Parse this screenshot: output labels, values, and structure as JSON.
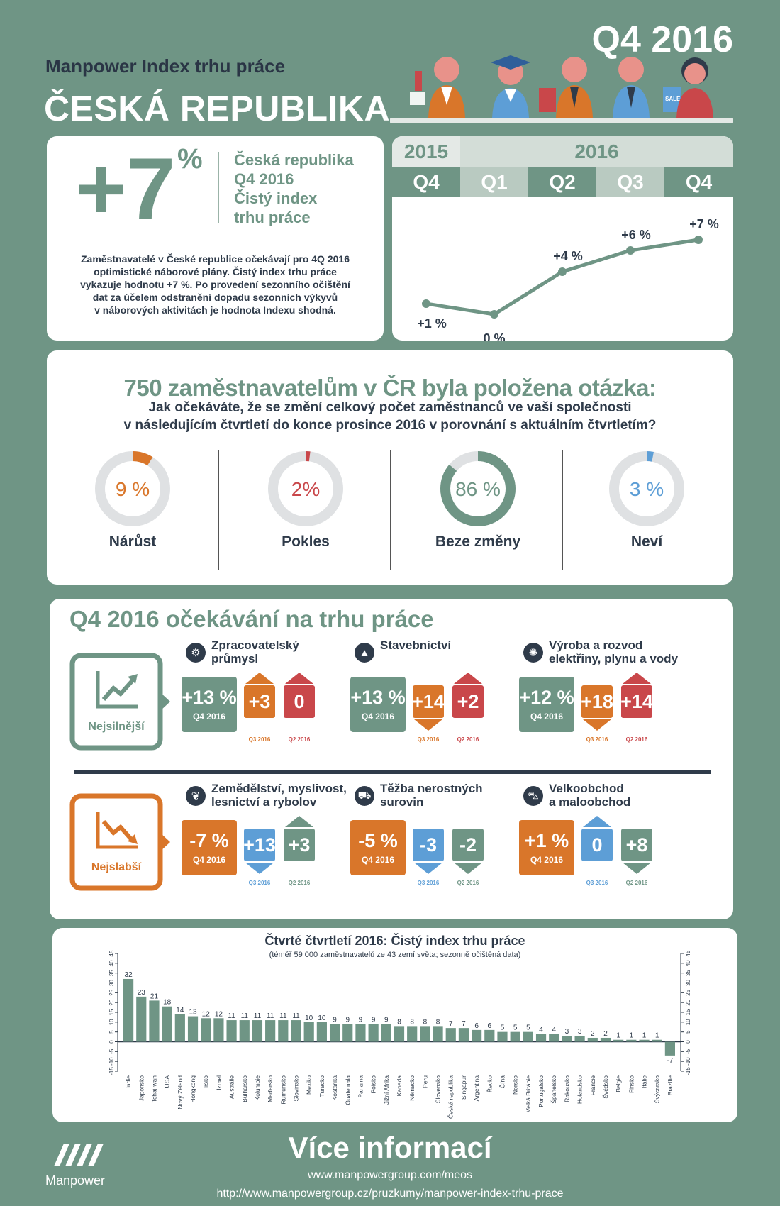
{
  "header": {
    "subtitle": "Manpower Index trhu práce",
    "country": "ČESKÁ REPUBLIKA",
    "quarter": "Q4 2016",
    "sale_tag": "SALE"
  },
  "summary": {
    "value": "+7",
    "percent": "%",
    "caption_lines": [
      "Česká republika",
      "Q4 2016",
      "Čistý index",
      "trhu práce"
    ],
    "text_lines": [
      "Zaměstnavatelé v České republice očekávají pro 4Q 2016",
      "optimistické náborové plány. Čistý index trhu práce",
      "vykazuje hodnotu +7 %. Po provedení sezonního očištění",
      "dat za účelem odstranění dopadu sezonních výkyvů",
      "v náborových aktivitách je hodnota Indexu shodná."
    ]
  },
  "trend": {
    "year_left": "2015",
    "year_right": "2016",
    "quarters": [
      "Q4",
      "Q1",
      "Q2",
      "Q3",
      "Q4"
    ],
    "values": [
      1,
      0,
      4,
      6,
      7
    ],
    "labels": [
      "+1 %",
      "0 %",
      "+4 %",
      "+6 %",
      "+7 %"
    ]
  },
  "survey": {
    "title": "750 zaměstnavatelům v ČR byla položena otázka:",
    "question_lines": [
      "Jak očekáváte, že se změní celkový počet zaměstnanců ve vaší společnosti",
      "v následujícím čtvrtletí do konce prosince 2016 v porovnání s aktuálním čtvrtletím?"
    ],
    "answers": [
      {
        "label": "Nárůst",
        "value": 9,
        "text": "9 %",
        "color": "#d9762a"
      },
      {
        "label": "Pokles",
        "value": 2,
        "text": "2%",
        "color": "#c9474a"
      },
      {
        "label": "Beze změny",
        "value": 86,
        "text": "86 %",
        "color": "#6f9585"
      },
      {
        "label": "Neví",
        "value": 3,
        "text": "3 %",
        "color": "#5d9ed6"
      }
    ]
  },
  "sectors": {
    "title": "Q4 2016 očekávání na trhu práce",
    "strongest_label": "Nejsilnější",
    "weakest_label": "Nejslabší",
    "sub_q4": "Q4 2016",
    "cap_q3": "Q3 2016",
    "cap_q2": "Q2 2016",
    "strong": [
      {
        "name": [
          "Zpracovatelský",
          "průmysl"
        ],
        "icon": "gears-icon",
        "q4": "+13 %",
        "q3": "+3",
        "q3_dir": "up",
        "q2": "0",
        "q2_dir": "up"
      },
      {
        "name": [
          "Stavebnictví"
        ],
        "icon": "traffic-cone-icon",
        "q4": "+13 %",
        "q3": "+14",
        "q3_dir": "down",
        "q2": "+2",
        "q2_dir": "up"
      },
      {
        "name": [
          "Výroba a rozvod",
          "elektřiny, plynu a vody"
        ],
        "icon": "light-bulb-icon",
        "q4": "+12 %",
        "q3": "+18",
        "q3_dir": "down",
        "q2": "+14",
        "q2_dir": "up"
      }
    ],
    "weak": [
      {
        "name": [
          "Zemědělství, myslivost,",
          "lesnictví a rybolov"
        ],
        "icon": "wheat-icon",
        "q4": "-7 %",
        "q3": "+13",
        "q3_dir": "down",
        "q2": "+3",
        "q2_dir": "up"
      },
      {
        "name": [
          "Těžba nerostných",
          "surovin"
        ],
        "icon": "mining-truck-icon",
        "q4": "-5 %",
        "q3": "-3",
        "q3_dir": "down",
        "q2": "-2",
        "q2_dir": "down"
      },
      {
        "name": [
          "Velkoobchod",
          "a maloobchod"
        ],
        "icon": "shopping-cart-icon",
        "q4": "+1 %",
        "q3": "0",
        "q3_dir": "up",
        "q2": "+8",
        "q2_dir": "down"
      }
    ]
  },
  "chart_data": {
    "type": "bar",
    "title": "Čtvrté čtvrtletí 2016: Čistý index trhu práce",
    "subtitle": "(téměř 59 000 zaměstnavatelů ze 43 zemí světa; sezonně očištěná data)",
    "categories": [
      "Indie",
      "Japonsko",
      "Tchaj-wan",
      "USA",
      "Nový Zéland",
      "Hongkong",
      "Irsko",
      "Izrael",
      "Austrálie",
      "Bulharsko",
      "Kolumbie",
      "Maďarsko",
      "Rumunsko",
      "Slovinsko",
      "Mexiko",
      "Turecko",
      "Kostarika",
      "Guatemala",
      "Panama",
      "Polsko",
      "Jižní Afrika",
      "Kanada",
      "Německo",
      "Peru",
      "Slovensko",
      "Česká republika",
      "Singapur",
      "Argentina",
      "Řecko",
      "Čína",
      "Norsko",
      "Velká Británie",
      "Portugalsko",
      "Španělsko",
      "Rakousko",
      "Holandsko",
      "Francie",
      "Švédsko",
      "Belgie",
      "Finsko",
      "Itálie",
      "Švýcarsko",
      "Brazílie"
    ],
    "values": [
      32,
      23,
      21,
      18,
      14,
      13,
      12,
      12,
      11,
      11,
      11,
      11,
      11,
      11,
      10,
      10,
      9,
      9,
      9,
      9,
      9,
      8,
      8,
      8,
      8,
      7,
      7,
      6,
      6,
      5,
      5,
      5,
      4,
      4,
      3,
      3,
      2,
      2,
      1,
      1,
      1,
      1,
      -7
    ],
    "yticks": [
      45,
      40,
      35,
      30,
      25,
      20,
      15,
      10,
      5,
      0,
      -5,
      -10,
      -15
    ],
    "ylim": [
      -15,
      45
    ]
  },
  "footer": {
    "logo_text": "Manpower",
    "title": "Více informací",
    "url1": "www.manpowergroup.com/meos",
    "url2": "http://www.manpowergroup.cz/pruzkumy/manpower-index-trhu-prace"
  },
  "colors": {
    "green": "#6f9585",
    "orange": "#d9762a",
    "red": "#c9474a",
    "blue": "#5d9ed6",
    "dark": "#2f3b4a"
  }
}
